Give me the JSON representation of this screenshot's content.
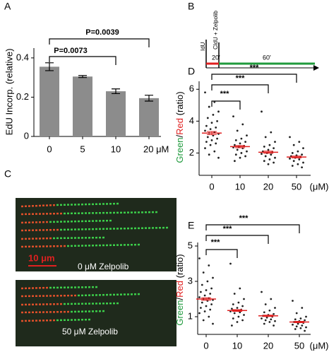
{
  "chart_data": [
    {
      "type": "bar",
      "panel_label": "A",
      "y_label": "EdU Incorp. (relative)",
      "categories": [
        "0",
        "5",
        "10",
        "20 μM"
      ],
      "values": [
        0.355,
        0.305,
        0.23,
        0.195
      ],
      "errors": [
        0.02,
        0.005,
        0.012,
        0.015
      ],
      "color": "#8c8c8c",
      "ylim": [
        0,
        0.45
      ],
      "yticks": [
        0,
        0.2,
        0.4
      ],
      "annotations": [
        "P=0.0073",
        "P=0.0039"
      ]
    },
    {
      "type": "dotplot",
      "panel_label": "D",
      "y_label": [
        {
          "text": "Green",
          "color": "#1f9a3c"
        },
        {
          "text": "/",
          "color": "#000000"
        },
        {
          "text": "Red",
          "color": "#e02020"
        },
        {
          "text": " (ratio)",
          "color": "#000000"
        }
      ],
      "categories": [
        "0",
        "10",
        "20",
        "50"
      ],
      "x_unit": "(μM)",
      "ylim": [
        0.6,
        6.5
      ],
      "yticks": [
        2,
        4,
        6
      ],
      "groups": [
        [
          5.8,
          5.2,
          4.9,
          4.6,
          4.4,
          4.2,
          4.0,
          3.9,
          3.7,
          3.6,
          3.5,
          3.4,
          3.3,
          3.25,
          3.2,
          3.1,
          3.0,
          2.9,
          2.8,
          2.7,
          2.6,
          2.5,
          2.3,
          2.1,
          1.9,
          1.7
        ],
        [
          4.3,
          3.8,
          3.4,
          3.1,
          2.9,
          2.8,
          2.7,
          2.6,
          2.5,
          2.45,
          2.4,
          2.35,
          2.3,
          2.2,
          2.1,
          2.0,
          1.9,
          1.8,
          1.7,
          1.5
        ],
        [
          4.6,
          3.3,
          3.0,
          2.7,
          2.5,
          2.4,
          2.3,
          2.2,
          2.1,
          2.05,
          2.0,
          1.95,
          1.9,
          1.8,
          1.7,
          1.6,
          1.5,
          1.4,
          1.3
        ],
        [
          3.0,
          2.7,
          2.5,
          2.3,
          2.1,
          2.0,
          1.9,
          1.85,
          1.8,
          1.75,
          1.7,
          1.65,
          1.6,
          1.5,
          1.4,
          1.3,
          1.2,
          1.1
        ]
      ],
      "medians": [
        3.25,
        2.4,
        2.05,
        1.75
      ],
      "sem": [
        0.1,
        0.07,
        0.07,
        0.06
      ],
      "dot_color": "#222222",
      "median_color": "#e02020",
      "annotations": [
        "***",
        "***",
        "***"
      ]
    },
    {
      "type": "dotplot",
      "panel_label": "E",
      "y_label": [
        {
          "text": "Green",
          "color": "#1f9a3c"
        },
        {
          "text": "/",
          "color": "#000000"
        },
        {
          "text": "Red",
          "color": "#e02020"
        },
        {
          "text": " (ratio)",
          "color": "#000000"
        }
      ],
      "categories": [
        "0",
        "10",
        "20",
        "50"
      ],
      "x_unit": "(μM)",
      "ylim": [
        0,
        5.2
      ],
      "yticks": [
        1,
        3,
        5
      ],
      "groups": [
        [
          4.3,
          3.9,
          3.5,
          3.2,
          3.0,
          2.8,
          2.6,
          2.5,
          2.4,
          2.3,
          2.2,
          2.1,
          2.05,
          2.0,
          1.95,
          1.9,
          1.8,
          1.7,
          1.6,
          1.5,
          1.4,
          1.3,
          1.2,
          1.0,
          0.8,
          0.6
        ],
        [
          4.0,
          2.6,
          2.3,
          2.0,
          1.8,
          1.7,
          1.6,
          1.5,
          1.45,
          1.4,
          1.35,
          1.3,
          1.25,
          1.2,
          1.1,
          1.0,
          0.9,
          0.8,
          0.7,
          0.5
        ],
        [
          2.4,
          2.0,
          1.7,
          1.5,
          1.35,
          1.25,
          1.15,
          1.1,
          1.05,
          1.0,
          0.95,
          0.9,
          0.85,
          0.8,
          0.75,
          0.7,
          0.6,
          0.5
        ],
        [
          1.9,
          1.5,
          1.2,
          1.0,
          0.9,
          0.85,
          0.8,
          0.75,
          0.7,
          0.65,
          0.6,
          0.55,
          0.5,
          0.45,
          0.4,
          0.35,
          0.3,
          0.2
        ]
      ],
      "medians": [
        2.0,
        1.35,
        1.05,
        0.7
      ],
      "sem": [
        0.07,
        0.05,
        0.04,
        0.04
      ],
      "dot_color": "#222222",
      "median_color": "#e02020",
      "annotations": [
        "***",
        "***",
        "***"
      ]
    }
  ],
  "schematic": {
    "panel_label": "B",
    "labels": [
      "IdU",
      "CldU + Zelpolib",
      "20'",
      "60'"
    ]
  },
  "micrographs": {
    "panel_label": "C",
    "scale_bar": "10 μm",
    "captions": [
      "0 μM Zelpolib",
      "50 μM Zelpolib"
    ]
  }
}
